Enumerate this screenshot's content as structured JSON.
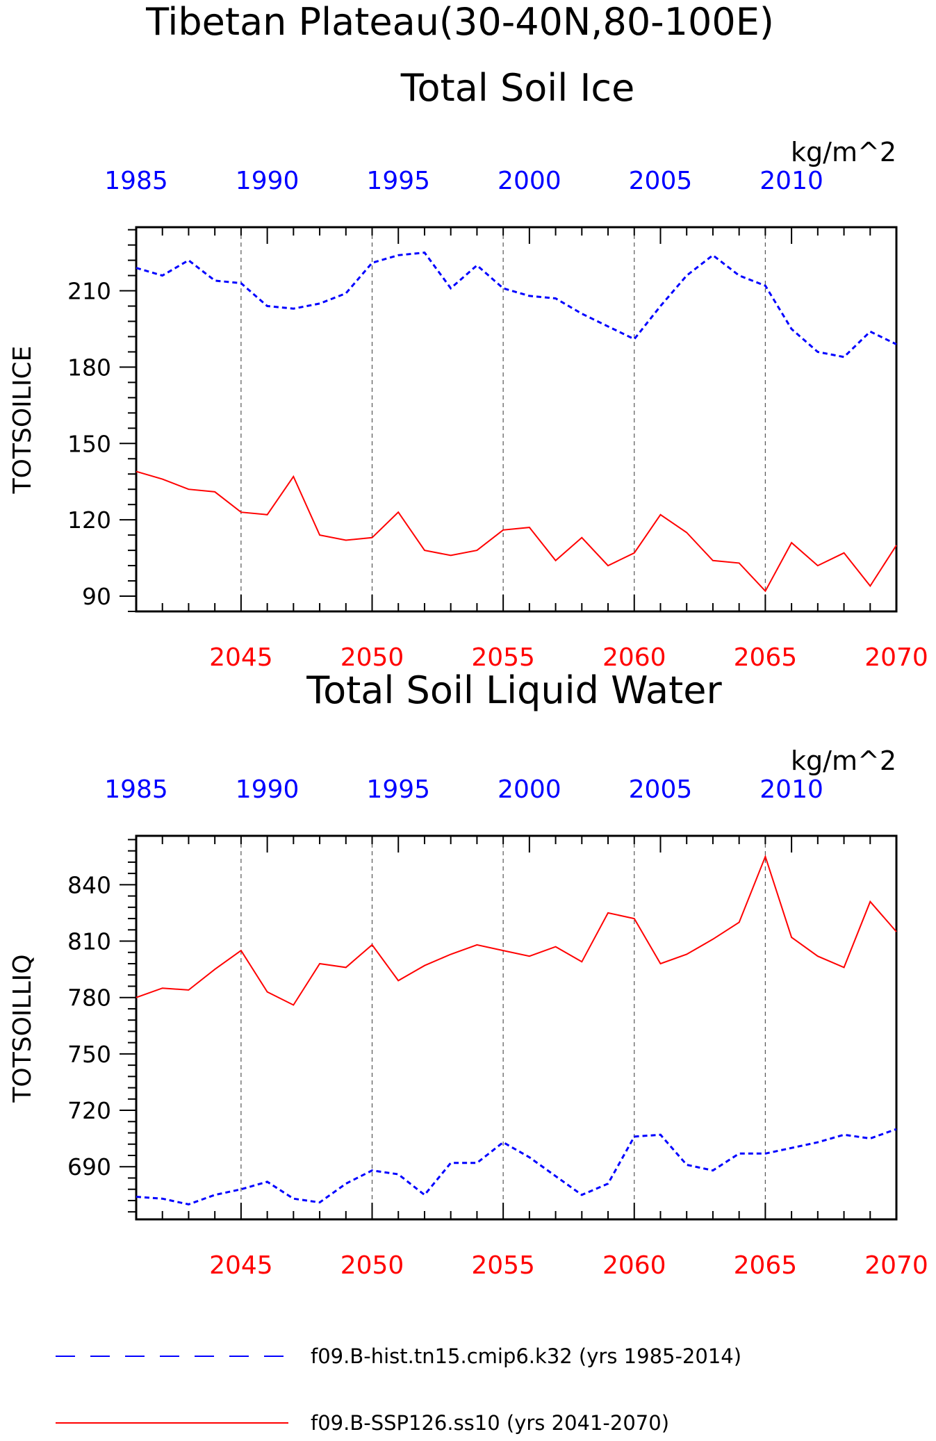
{
  "figure": {
    "title_line1": "Tibetan Plateau(30-40N,80-100E)",
    "title_line2": "Total Soil Ice"
  },
  "legend": {
    "hist_label": "f09.B-hist.tn15.cmip6.k32 (yrs 1985-2014)",
    "ssp_label": "f09.B-SSP126.ss10 (yrs 2041-2070)",
    "hist_color": "#0000ff",
    "ssp_color": "#ff0000"
  },
  "chart_data": [
    {
      "type": "line",
      "title": "",
      "units": "kg/m^2",
      "ylabel": "TOTSOILICE",
      "ylim": [
        84,
        235
      ],
      "yticks": [
        90,
        120,
        150,
        180,
        210
      ],
      "x_bottom": {
        "label_color": "#ff0000",
        "range": [
          2041,
          2070
        ],
        "ticks": [
          2045,
          2050,
          2055,
          2060,
          2065,
          2070
        ]
      },
      "x_top": {
        "label_color": "#0000ff",
        "range": [
          1985,
          2014
        ],
        "ticks": [
          1985,
          1990,
          1995,
          2000,
          2005,
          2010
        ]
      },
      "grid": "vertical dashed at major ticks",
      "series": [
        {
          "name": "f09.B-hist.tn15.cmip6.k32 (yrs 1985-2014)",
          "color": "#0000ff",
          "dash": "dashed",
          "axis": "top",
          "x": [
            1985,
            1986,
            1987,
            1988,
            1989,
            1990,
            1991,
            1992,
            1993,
            1994,
            1995,
            1996,
            1997,
            1998,
            1999,
            2000,
            2001,
            2002,
            2003,
            2004,
            2005,
            2006,
            2007,
            2008,
            2009,
            2010,
            2011,
            2012,
            2013,
            2014
          ],
          "values": [
            219,
            216,
            222,
            214,
            213,
            204,
            203,
            205,
            209,
            221,
            224,
            225,
            211,
            220,
            211,
            208,
            207,
            201,
            196,
            191,
            204,
            216,
            224,
            216,
            212,
            195,
            186,
            184,
            194,
            189
          ]
        },
        {
          "name": "f09.B-SSP126.ss10 (yrs 2041-2070)",
          "color": "#ff0000",
          "dash": "solid",
          "axis": "bottom",
          "x": [
            2041,
            2042,
            2043,
            2044,
            2045,
            2046,
            2047,
            2048,
            2049,
            2050,
            2051,
            2052,
            2053,
            2054,
            2055,
            2056,
            2057,
            2058,
            2059,
            2060,
            2061,
            2062,
            2063,
            2064,
            2065,
            2066,
            2067,
            2068,
            2069,
            2070
          ],
          "values": [
            139,
            136,
            132,
            131,
            123,
            122,
            137,
            114,
            112,
            113,
            123,
            108,
            106,
            108,
            116,
            117,
            104,
            113,
            102,
            107,
            122,
            115,
            104,
            103,
            92,
            111,
            102,
            107,
            94,
            110
          ]
        }
      ]
    },
    {
      "type": "line",
      "title": "Total Soil Liquid Water",
      "units": "kg/m^2",
      "ylabel": "TOTSOILLIQ",
      "ylim": [
        662,
        866
      ],
      "yticks": [
        690,
        720,
        750,
        780,
        810,
        840
      ],
      "x_bottom": {
        "label_color": "#ff0000",
        "range": [
          2041,
          2070
        ],
        "ticks": [
          2045,
          2050,
          2055,
          2060,
          2065,
          2070
        ]
      },
      "x_top": {
        "label_color": "#0000ff",
        "range": [
          1985,
          2014
        ],
        "ticks": [
          1985,
          1990,
          1995,
          2000,
          2005,
          2010
        ]
      },
      "grid": "vertical dashed at major ticks",
      "series": [
        {
          "name": "f09.B-hist.tn15.cmip6.k32 (yrs 1985-2014)",
          "color": "#0000ff",
          "dash": "dashed",
          "axis": "top",
          "x": [
            1985,
            1986,
            1987,
            1988,
            1989,
            1990,
            1991,
            1992,
            1993,
            1994,
            1995,
            1996,
            1997,
            1998,
            1999,
            2000,
            2001,
            2002,
            2003,
            2004,
            2005,
            2006,
            2007,
            2008,
            2009,
            2010,
            2011,
            2012,
            2013,
            2014
          ],
          "values": [
            674,
            673,
            670,
            675,
            678,
            682,
            673,
            671,
            681,
            688,
            686,
            675,
            692,
            692,
            703,
            695,
            685,
            675,
            681,
            706,
            707,
            691,
            688,
            697,
            697,
            700,
            703,
            707,
            705,
            710
          ]
        },
        {
          "name": "f09.B-SSP126.ss10 (yrs 2041-2070)",
          "color": "#ff0000",
          "dash": "solid",
          "axis": "bottom",
          "x": [
            2041,
            2042,
            2043,
            2044,
            2045,
            2046,
            2047,
            2048,
            2049,
            2050,
            2051,
            2052,
            2053,
            2054,
            2055,
            2056,
            2057,
            2058,
            2059,
            2060,
            2061,
            2062,
            2063,
            2064,
            2065,
            2066,
            2067,
            2068,
            2069,
            2070
          ],
          "values": [
            780,
            785,
            784,
            795,
            805,
            783,
            776,
            798,
            796,
            808,
            789,
            797,
            803,
            808,
            805,
            802,
            807,
            799,
            825,
            822,
            798,
            803,
            811,
            820,
            855,
            812,
            802,
            796,
            831,
            815
          ]
        }
      ]
    }
  ]
}
